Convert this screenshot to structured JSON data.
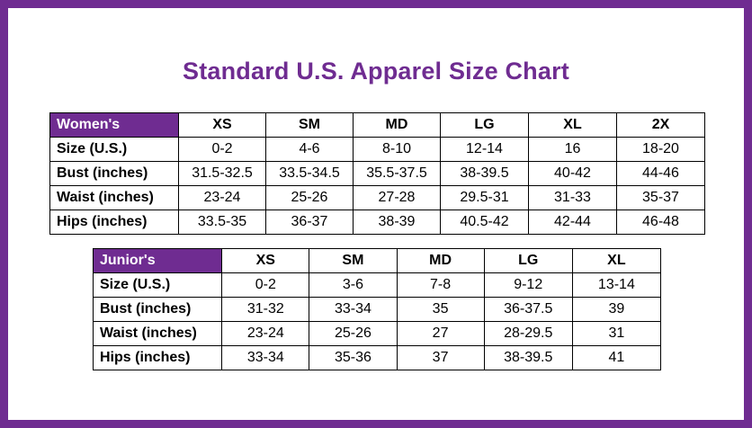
{
  "title": "Standard U.S. Apparel Size Chart",
  "colors": {
    "accent": "#6f2c91",
    "header_text": "#ffffff"
  },
  "womens": {
    "label": "Women's",
    "sizes": [
      "XS",
      "SM",
      "MD",
      "LG",
      "XL",
      "2X"
    ],
    "rows": [
      {
        "label": "Size (U.S.)",
        "values": [
          "0-2",
          "4-6",
          "8-10",
          "12-14",
          "16",
          "18-20"
        ]
      },
      {
        "label": "Bust (inches)",
        "values": [
          "31.5-32.5",
          "33.5-34.5",
          "35.5-37.5",
          "38-39.5",
          "40-42",
          "44-46"
        ]
      },
      {
        "label": "Waist (inches)",
        "values": [
          "23-24",
          "25-26",
          "27-28",
          "29.5-31",
          "31-33",
          "35-37"
        ]
      },
      {
        "label": "Hips (inches)",
        "values": [
          "33.5-35",
          "36-37",
          "38-39",
          "40.5-42",
          "42-44",
          "46-48"
        ]
      }
    ]
  },
  "juniors": {
    "label": "Junior's",
    "sizes": [
      "XS",
      "SM",
      "MD",
      "LG",
      "XL"
    ],
    "rows": [
      {
        "label": "Size (U.S.)",
        "values": [
          "0-2",
          "3-6",
          "7-8",
          "9-12",
          "13-14"
        ]
      },
      {
        "label": "Bust (inches)",
        "values": [
          "31-32",
          "33-34",
          "35",
          "36-37.5",
          "39"
        ]
      },
      {
        "label": "Waist (inches)",
        "values": [
          "23-24",
          "25-26",
          "27",
          "28-29.5",
          "31"
        ]
      },
      {
        "label": "Hips (inches)",
        "values": [
          "33-34",
          "35-36",
          "37",
          "38-39.5",
          "41"
        ]
      }
    ]
  }
}
